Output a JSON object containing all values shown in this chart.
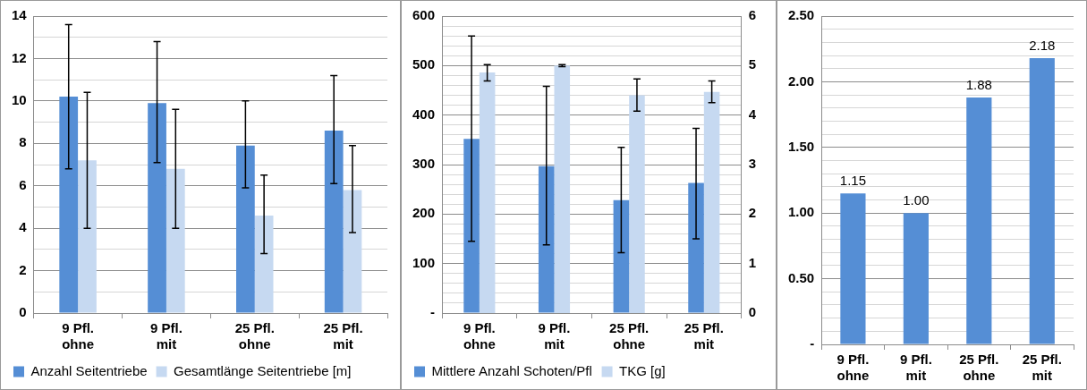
{
  "chart_data": [
    {
      "type": "bar",
      "categories": [
        "9 Pfl. ohne",
        "9 Pfl. mit",
        "25 Pfl. ohne",
        "25 Pfl. mit"
      ],
      "series": [
        {
          "name": "Anzahl Seitentriebe",
          "color": "#558ed5",
          "values": [
            10.2,
            9.9,
            7.9,
            8.6
          ],
          "errors": [
            [
              6.8,
              13.6
            ],
            [
              7.1,
              12.8
            ],
            [
              5.9,
              10.0
            ],
            [
              6.1,
              11.2
            ]
          ]
        },
        {
          "name": "Gesamtlänge Seitentriebe [m]",
          "color": "#c6d9f1",
          "values": [
            7.2,
            6.8,
            4.6,
            5.8
          ],
          "errors": [
            [
              4.0,
              10.4
            ],
            [
              4.0,
              9.6
            ],
            [
              2.8,
              6.5
            ],
            [
              3.8,
              7.9
            ]
          ]
        }
      ],
      "ylim": [
        0,
        14
      ],
      "yticks": [
        0,
        {
          "value": 1,
          "label": null
        },
        2,
        {
          "value": 3,
          "label": null
        },
        4,
        {
          "value": 5,
          "label": null
        },
        6,
        {
          "value": 7,
          "label": null
        },
        8,
        {
          "value": 9,
          "label": null
        },
        10,
        {
          "value": 11,
          "label": null
        },
        12,
        {
          "value": 13,
          "label": null
        },
        14
      ],
      "grid": "y",
      "legend": "bottom"
    },
    {
      "type": "bar",
      "categories": [
        "9 Pfl. ohne",
        "9 Pfl. mit",
        "25 Pfl. ohne",
        "25 Pfl. mit"
      ],
      "series": [
        {
          "name": "Mittlere Anzahl Schoten/Pfl",
          "color": "#558ed5",
          "values": [
            352,
            297,
            228,
            263
          ],
          "errors": [
            [
              145,
              560
            ],
            [
              138,
              458
            ],
            [
              122,
              335
            ],
            [
              150,
              373
            ]
          ]
        },
        {
          "name": "TKG [g]",
          "color": "#c6d9f1",
          "axis": "y2",
          "values": [
            4.86,
            5.0,
            4.4,
            4.47
          ],
          "errors": [
            [
              4.69,
              5.02
            ],
            [
              4.98,
              5.02
            ],
            [
              4.08,
              4.73
            ],
            [
              4.25,
              4.69
            ]
          ]
        }
      ],
      "ylim": [
        0,
        600
      ],
      "yticks": [
        {
          "value": 0,
          "label": "-"
        },
        {
          "value": 20,
          "label": null
        },
        {
          "value": 40,
          "label": null
        },
        {
          "value": 60,
          "label": null
        },
        {
          "value": 80,
          "label": null
        },
        100,
        {
          "value": 120,
          "label": null
        },
        {
          "value": 140,
          "label": null
        },
        {
          "value": 160,
          "label": null
        },
        {
          "value": 180,
          "label": null
        },
        200,
        {
          "value": 220,
          "label": null
        },
        {
          "value": 240,
          "label": null
        },
        {
          "value": 260,
          "label": null
        },
        {
          "value": 280,
          "label": null
        },
        300,
        {
          "value": 320,
          "label": null
        },
        {
          "value": 340,
          "label": null
        },
        {
          "value": 360,
          "label": null
        },
        {
          "value": 380,
          "label": null
        },
        400,
        {
          "value": 420,
          "label": null
        },
        {
          "value": 440,
          "label": null
        },
        {
          "value": 460,
          "label": null
        },
        {
          "value": 480,
          "label": null
        },
        500,
        {
          "value": 520,
          "label": null
        },
        {
          "value": 540,
          "label": null
        },
        {
          "value": 560,
          "label": null
        },
        {
          "value": 580,
          "label": null
        },
        600
      ],
      "y2lim": [
        0,
        6
      ],
      "y2ticks": [
        0,
        1,
        2,
        3,
        4,
        5,
        6
      ],
      "grid": "y",
      "legend": "bottom"
    },
    {
      "type": "bar",
      "categories": [
        "9 Pfl. ohne",
        "9 Pfl. mit",
        "25 Pfl. ohne",
        "25 Pfl. mit"
      ],
      "series": [
        {
          "color": "#558ed5",
          "values": [
            1.15,
            1.0,
            1.88,
            2.18
          ],
          "value_labels": [
            "1.15",
            "1.00",
            "1.88",
            "2.18"
          ]
        }
      ],
      "ylim": [
        0,
        2.5
      ],
      "yticks": [
        {
          "value": 0,
          "label": "-"
        },
        {
          "value": 0.1,
          "label": null
        },
        {
          "value": 0.2,
          "label": null
        },
        {
          "value": 0.3,
          "label": null
        },
        {
          "value": 0.4,
          "label": null
        },
        {
          "value": 0.5,
          "label": "0.50"
        },
        {
          "value": 0.6,
          "label": null
        },
        {
          "value": 0.7,
          "label": null
        },
        {
          "value": 0.8,
          "label": null
        },
        {
          "value": 0.9,
          "label": null
        },
        {
          "value": 1.0,
          "label": "1.00"
        },
        {
          "value": 1.1,
          "label": null
        },
        {
          "value": 1.2,
          "label": null
        },
        {
          "value": 1.3,
          "label": null
        },
        {
          "value": 1.4,
          "label": null
        },
        {
          "value": 1.5,
          "label": "1.50"
        },
        {
          "value": 1.6,
          "label": null
        },
        {
          "value": 1.7,
          "label": null
        },
        {
          "value": 1.8,
          "label": null
        },
        {
          "value": 1.9,
          "label": null
        },
        {
          "value": 2.0,
          "label": "2.00"
        },
        {
          "value": 2.1,
          "label": null
        },
        {
          "value": 2.2,
          "label": null
        },
        {
          "value": 2.3,
          "label": null
        },
        {
          "value": 2.4,
          "label": null
        },
        {
          "value": 2.5,
          "label": "2.50"
        }
      ],
      "grid": "y"
    }
  ]
}
